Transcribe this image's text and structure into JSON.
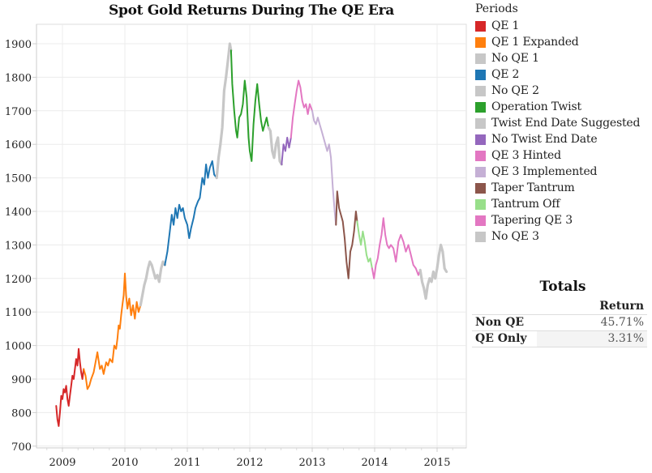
{
  "chart_data": {
    "type": "line",
    "title": "Spot Gold Returns During The QE Era",
    "xlabel": "",
    "ylabel": "",
    "xlim": [
      2008.6,
      2015.5
    ],
    "ylim": [
      670,
      1960
    ],
    "x_ticks": [
      2009,
      2010,
      2011,
      2012,
      2013,
      2014,
      2015
    ],
    "x_tick_labels": [
      "2009",
      "2010",
      "2011",
      "2012",
      "2013",
      "2014",
      "2015"
    ],
    "y_ticks": [
      700,
      800,
      900,
      1000,
      1100,
      1200,
      1300,
      1400,
      1500,
      1600,
      1700,
      1800,
      1900
    ],
    "y_tick_labels": [
      "700",
      "800",
      "900",
      "1000",
      "1100",
      "1200",
      "1300",
      "1400",
      "1500",
      "1600",
      "1700",
      "1800",
      "1900"
    ],
    "grid": true,
    "legend_title": "Periods",
    "legend_position": "right",
    "series": [
      {
        "name": "QE 1",
        "color": "#d62728",
        "points": [
          [
            2008.9,
            820
          ],
          [
            2008.92,
            780
          ],
          [
            2008.94,
            760
          ],
          [
            2008.96,
            800
          ],
          [
            2008.98,
            850
          ],
          [
            2009.0,
            840
          ],
          [
            2009.02,
            870
          ],
          [
            2009.04,
            860
          ],
          [
            2009.06,
            880
          ],
          [
            2009.08,
            840
          ],
          [
            2009.1,
            820
          ],
          [
            2009.12,
            850
          ],
          [
            2009.14,
            880
          ],
          [
            2009.16,
            910
          ],
          [
            2009.18,
            900
          ],
          [
            2009.2,
            930
          ],
          [
            2009.22,
            960
          ],
          [
            2009.24,
            940
          ],
          [
            2009.26,
            990
          ],
          [
            2009.28,
            950
          ],
          [
            2009.3,
            920
          ],
          [
            2009.32,
            900
          ],
          [
            2009.34,
            930
          ]
        ]
      },
      {
        "name": "QE 1 Expanded",
        "color": "#ff7f0e",
        "points": [
          [
            2009.34,
            930
          ],
          [
            2009.37,
            910
          ],
          [
            2009.4,
            870
          ],
          [
            2009.43,
            880
          ],
          [
            2009.46,
            900
          ],
          [
            2009.5,
            920
          ],
          [
            2009.53,
            950
          ],
          [
            2009.56,
            980
          ],
          [
            2009.6,
            930
          ],
          [
            2009.63,
            940
          ],
          [
            2009.66,
            915
          ],
          [
            2009.7,
            950
          ],
          [
            2009.73,
            940
          ],
          [
            2009.76,
            960
          ],
          [
            2009.8,
            950
          ],
          [
            2009.83,
            1000
          ],
          [
            2009.86,
            990
          ],
          [
            2009.88,
            1020
          ],
          [
            2009.9,
            1060
          ],
          [
            2009.92,
            1050
          ],
          [
            2009.94,
            1090
          ],
          [
            2009.96,
            1120
          ],
          [
            2009.98,
            1150
          ],
          [
            2010.0,
            1215
          ],
          [
            2010.02,
            1150
          ],
          [
            2010.04,
            1110
          ],
          [
            2010.07,
            1140
          ],
          [
            2010.1,
            1090
          ],
          [
            2010.13,
            1120
          ],
          [
            2010.16,
            1080
          ],
          [
            2010.19,
            1130
          ],
          [
            2010.22,
            1100
          ],
          [
            2010.25,
            1120
          ]
        ]
      },
      {
        "name": "No QE 1",
        "color": "#c7c7c7",
        "points": [
          [
            2010.25,
            1120
          ],
          [
            2010.28,
            1150
          ],
          [
            2010.31,
            1180
          ],
          [
            2010.34,
            1200
          ],
          [
            2010.37,
            1230
          ],
          [
            2010.4,
            1250
          ],
          [
            2010.43,
            1240
          ],
          [
            2010.46,
            1220
          ],
          [
            2010.49,
            1200
          ],
          [
            2010.52,
            1210
          ],
          [
            2010.55,
            1190
          ],
          [
            2010.58,
            1230
          ],
          [
            2010.61,
            1250
          ],
          [
            2010.64,
            1240
          ]
        ]
      },
      {
        "name": "QE 2",
        "color": "#1f77b4",
        "points": [
          [
            2010.64,
            1240
          ],
          [
            2010.68,
            1280
          ],
          [
            2010.72,
            1340
          ],
          [
            2010.75,
            1390
          ],
          [
            2010.78,
            1360
          ],
          [
            2010.81,
            1410
          ],
          [
            2010.84,
            1380
          ],
          [
            2010.87,
            1420
          ],
          [
            2010.9,
            1400
          ],
          [
            2010.93,
            1410
          ],
          [
            2010.96,
            1380
          ],
          [
            2011.0,
            1360
          ],
          [
            2011.03,
            1320
          ],
          [
            2011.06,
            1350
          ],
          [
            2011.1,
            1380
          ],
          [
            2011.13,
            1410
          ],
          [
            2011.17,
            1430
          ],
          [
            2011.2,
            1440
          ],
          [
            2011.24,
            1500
          ],
          [
            2011.27,
            1480
          ],
          [
            2011.3,
            1540
          ],
          [
            2011.33,
            1500
          ],
          [
            2011.36,
            1530
          ],
          [
            2011.4,
            1550
          ],
          [
            2011.43,
            1510
          ],
          [
            2011.47,
            1500
          ]
        ]
      },
      {
        "name": "No QE 2",
        "color": "#c7c7c7",
        "points": [
          [
            2011.47,
            1500
          ],
          [
            2011.5,
            1560
          ],
          [
            2011.53,
            1600
          ],
          [
            2011.56,
            1650
          ],
          [
            2011.59,
            1760
          ],
          [
            2011.62,
            1800
          ],
          [
            2011.65,
            1850
          ],
          [
            2011.68,
            1900
          ],
          [
            2011.7,
            1880
          ]
        ]
      },
      {
        "name": "Operation Twist",
        "color": "#2ca02c",
        "points": [
          [
            2011.7,
            1880
          ],
          [
            2011.72,
            1780
          ],
          [
            2011.75,
            1700
          ],
          [
            2011.78,
            1640
          ],
          [
            2011.8,
            1620
          ],
          [
            2011.83,
            1680
          ],
          [
            2011.86,
            1690
          ],
          [
            2011.89,
            1720
          ],
          [
            2011.92,
            1790
          ],
          [
            2011.95,
            1740
          ],
          [
            2011.98,
            1620
          ],
          [
            2012.0,
            1580
          ],
          [
            2012.03,
            1550
          ],
          [
            2012.06,
            1660
          ],
          [
            2012.09,
            1730
          ],
          [
            2012.12,
            1780
          ],
          [
            2012.15,
            1720
          ],
          [
            2012.18,
            1670
          ],
          [
            2012.21,
            1640
          ],
          [
            2012.24,
            1660
          ],
          [
            2012.27,
            1680
          ],
          [
            2012.3,
            1650
          ]
        ]
      },
      {
        "name": "Twist End Date Suggested",
        "color": "#c7c7c7",
        "points": [
          [
            2012.3,
            1650
          ],
          [
            2012.33,
            1640
          ],
          [
            2012.36,
            1580
          ],
          [
            2012.39,
            1560
          ],
          [
            2012.42,
            1600
          ],
          [
            2012.45,
            1620
          ],
          [
            2012.48,
            1550
          ],
          [
            2012.51,
            1540
          ]
        ]
      },
      {
        "name": "No Twist End Date",
        "color": "#9467bd",
        "points": [
          [
            2012.51,
            1540
          ],
          [
            2012.54,
            1600
          ],
          [
            2012.57,
            1580
          ],
          [
            2012.6,
            1620
          ],
          [
            2012.63,
            1590
          ],
          [
            2012.66,
            1620
          ]
        ]
      },
      {
        "name": "QE 3 Hinted",
        "color": "#e377c2",
        "points": [
          [
            2012.66,
            1620
          ],
          [
            2012.69,
            1680
          ],
          [
            2012.72,
            1720
          ],
          [
            2012.75,
            1760
          ],
          [
            2012.78,
            1790
          ],
          [
            2012.81,
            1770
          ],
          [
            2012.84,
            1730
          ],
          [
            2012.87,
            1710
          ],
          [
            2012.9,
            1720
          ],
          [
            2012.93,
            1690
          ],
          [
            2012.96,
            1720
          ],
          [
            2013.0,
            1700
          ]
        ]
      },
      {
        "name": "QE 3 Implemented",
        "color": "#c5b0d5",
        "points": [
          [
            2013.0,
            1700
          ],
          [
            2013.03,
            1670
          ],
          [
            2013.06,
            1660
          ],
          [
            2013.09,
            1680
          ],
          [
            2013.12,
            1660
          ],
          [
            2013.15,
            1640
          ],
          [
            2013.18,
            1620
          ],
          [
            2013.21,
            1600
          ],
          [
            2013.24,
            1580
          ],
          [
            2013.27,
            1600
          ],
          [
            2013.3,
            1560
          ],
          [
            2013.33,
            1470
          ],
          [
            2013.36,
            1400
          ],
          [
            2013.38,
            1360
          ]
        ]
      },
      {
        "name": "Taper Tantrum",
        "color": "#8c564b",
        "points": [
          [
            2013.38,
            1360
          ],
          [
            2013.4,
            1460
          ],
          [
            2013.43,
            1410
          ],
          [
            2013.46,
            1390
          ],
          [
            2013.49,
            1370
          ],
          [
            2013.52,
            1320
          ],
          [
            2013.55,
            1250
          ],
          [
            2013.58,
            1200
          ],
          [
            2013.61,
            1280
          ],
          [
            2013.64,
            1300
          ],
          [
            2013.67,
            1340
          ],
          [
            2013.7,
            1400
          ],
          [
            2013.72,
            1370
          ]
        ]
      },
      {
        "name": "Tantrum Off",
        "color": "#98df8a",
        "points": [
          [
            2013.72,
            1370
          ],
          [
            2013.75,
            1330
          ],
          [
            2013.78,
            1300
          ],
          [
            2013.81,
            1340
          ],
          [
            2013.84,
            1310
          ],
          [
            2013.87,
            1270
          ],
          [
            2013.9,
            1250
          ],
          [
            2013.93,
            1260
          ],
          [
            2013.96,
            1230
          ]
        ]
      },
      {
        "name": "Tapering QE 3",
        "color": "#e377c2",
        "points": [
          [
            2013.96,
            1230
          ],
          [
            2013.99,
            1200
          ],
          [
            2014.02,
            1240
          ],
          [
            2014.05,
            1260
          ],
          [
            2014.08,
            1300
          ],
          [
            2014.11,
            1330
          ],
          [
            2014.14,
            1380
          ],
          [
            2014.17,
            1330
          ],
          [
            2014.2,
            1300
          ],
          [
            2014.23,
            1290
          ],
          [
            2014.26,
            1300
          ],
          [
            2014.3,
            1290
          ],
          [
            2014.34,
            1250
          ],
          [
            2014.38,
            1310
          ],
          [
            2014.42,
            1330
          ],
          [
            2014.46,
            1310
          ],
          [
            2014.5,
            1280
          ],
          [
            2014.54,
            1300
          ],
          [
            2014.58,
            1270
          ],
          [
            2014.62,
            1240
          ],
          [
            2014.66,
            1230
          ],
          [
            2014.7,
            1210
          ],
          [
            2014.73,
            1225
          ]
        ]
      },
      {
        "name": "No QE 3",
        "color": "#c7c7c7",
        "points": [
          [
            2014.73,
            1225
          ],
          [
            2014.76,
            1190
          ],
          [
            2014.79,
            1170
          ],
          [
            2014.82,
            1140
          ],
          [
            2014.85,
            1180
          ],
          [
            2014.88,
            1200
          ],
          [
            2014.91,
            1190
          ],
          [
            2014.94,
            1220
          ],
          [
            2014.97,
            1200
          ],
          [
            2015.0,
            1230
          ],
          [
            2015.03,
            1270
          ],
          [
            2015.06,
            1300
          ],
          [
            2015.09,
            1280
          ],
          [
            2015.12,
            1230
          ],
          [
            2015.15,
            1220
          ]
        ]
      }
    ]
  },
  "legend": {
    "title": "Periods",
    "items": [
      {
        "label": "QE 1",
        "color": "#d62728"
      },
      {
        "label": "QE 1 Expanded",
        "color": "#ff7f0e"
      },
      {
        "label": "No QE 1",
        "color": "#c7c7c7"
      },
      {
        "label": "QE 2",
        "color": "#1f77b4"
      },
      {
        "label": "No QE 2",
        "color": "#c7c7c7"
      },
      {
        "label": "Operation Twist",
        "color": "#2ca02c"
      },
      {
        "label": "Twist End Date Suggested",
        "color": "#c7c7c7"
      },
      {
        "label": "No Twist End Date",
        "color": "#9467bd"
      },
      {
        "label": "QE 3 Hinted",
        "color": "#e377c2"
      },
      {
        "label": "QE 3 Implemented",
        "color": "#c5b0d5"
      },
      {
        "label": "Taper Tantrum",
        "color": "#8c564b"
      },
      {
        "label": "Tantrum Off",
        "color": "#98df8a"
      },
      {
        "label": "Tapering QE 3",
        "color": "#e377c2"
      },
      {
        "label": "No QE 3",
        "color": "#c7c7c7"
      }
    ]
  },
  "totals": {
    "title": "Totals",
    "column_header": "Return",
    "rows": [
      {
        "label": "Non QE",
        "value": "45.71%"
      },
      {
        "label": "QE Only",
        "value": "3.31%"
      }
    ]
  }
}
